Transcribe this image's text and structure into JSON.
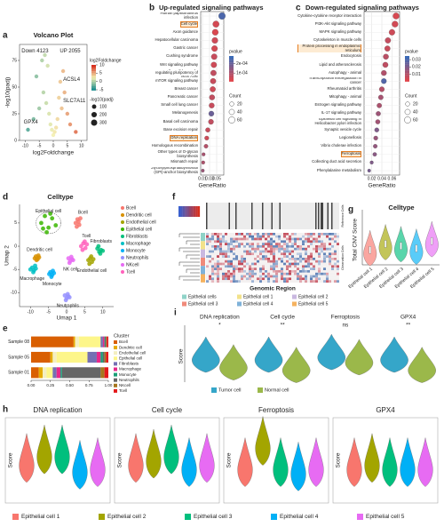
{
  "chart_data": [
    {
      "panel": "a",
      "type": "volcano",
      "title": "Volcano Plot",
      "xlabel": "log2Foldchange",
      "ylabel": "-log10(padj)",
      "x": [
        -9,
        -7,
        -6,
        -5,
        -4,
        -3.5,
        -3,
        -2.5,
        -2,
        -1.5,
        -1,
        -0.5,
        0,
        0.5,
        1,
        1.5,
        2,
        2.5,
        3,
        3.5,
        4,
        5,
        6,
        8
      ],
      "y": [
        10,
        20,
        60,
        30,
        75,
        45,
        80,
        35,
        70,
        25,
        15,
        10,
        5,
        8,
        12,
        20,
        40,
        55,
        30,
        65,
        45,
        25,
        15,
        8
      ],
      "xlim": [
        -12,
        12
      ],
      "ylim": [
        0,
        90
      ],
      "xticks": [
        -10,
        -5,
        0,
        5,
        10
      ],
      "yticks": [
        0,
        25,
        50,
        75
      ],
      "colors": [
        "#1f8f8f",
        "#f3efb0",
        "#d7301f"
      ],
      "annotations": [
        "Down 4123",
        "UP 2055",
        "ACSL4",
        "SLC7A11",
        "GPX4"
      ],
      "color_legend": {
        "title": "log2Foldchange",
        "ticks": [
          10,
          5,
          0,
          -5
        ]
      },
      "size_legend": {
        "title": "-log10(padj)",
        "ticks": [
          100,
          200,
          300
        ]
      }
    },
    {
      "panel": "b",
      "type": "dot",
      "title": "Up-regulated signaling pathways",
      "xlabel": "GeneRatio",
      "categories": [
        "Human papillomavirus infection",
        "Cell cycle",
        "Axon guidance",
        "Hepatocellular carcinoma",
        "Gastric cancer",
        "Cushing syndrome",
        "Wnt signaling pathway",
        "Signaling pathways regulating pluripotency of stem cells",
        "mTOR signaling pathway",
        "Breast cancer",
        "Pancreatic cancer",
        "Small cell lung cancer",
        "Melanogenesis",
        "Basal cell carcinoma",
        "Base excision repair",
        "DNA replication",
        "Homologous recombination",
        "Other types of O-glycan biosynthesis",
        "Mismatch repair",
        "Glycosylphosphatidylinositol (GPI)-anchor biosynthesis"
      ],
      "values": [
        0.065,
        0.048,
        0.046,
        0.045,
        0.044,
        0.043,
        0.042,
        0.041,
        0.04,
        0.039,
        0.037,
        0.036,
        0.035,
        0.034,
        0.025,
        0.022,
        0.02,
        0.013,
        0.012,
        0.011
      ],
      "counts": [
        70,
        60,
        55,
        52,
        50,
        48,
        46,
        45,
        44,
        42,
        40,
        38,
        36,
        35,
        25,
        20,
        18,
        10,
        10,
        8
      ],
      "pvalue": [
        0.00025,
        3e-05,
        2e-05,
        4e-05,
        3e-05,
        5e-05,
        4e-05,
        6e-05,
        5e-05,
        4e-05,
        6e-05,
        5e-05,
        0.0002,
        6e-05,
        5e-05,
        4e-05,
        8e-05,
        0.0001,
        9e-05,
        0.00012
      ],
      "highlight": [
        1,
        15
      ],
      "xlim": [
        0.005,
        0.07
      ],
      "xticks": [
        0.01,
        0.03,
        0.05
      ],
      "colors": [
        "#e0474c",
        "#3a6bb8"
      ],
      "pvalue_legend": {
        "title": "pvalue",
        "lim": [
          1e-05,
          0.00028
        ],
        "ticks": [
          {
            "value": 0.0001,
            "label": "1e-04"
          },
          {
            "value": 0.0002,
            "label": "2e-04"
          }
        ]
      },
      "count_legend": {
        "title": "Count",
        "ticks": [
          20,
          40,
          60
        ]
      }
    },
    {
      "panel": "c",
      "type": "dot",
      "title": "Down-regulated signaling pathways",
      "xlabel": "GeneRatio",
      "categories": [
        "Cytokine-cytokine receptor interaction",
        "PI3K-Akt signaling pathway",
        "MAPK signaling pathway",
        "Cytoskeleton in muscle cells",
        "Protein processing in endoplasmic reticulum",
        "Endocytosis",
        "Lipid and atherosclerosis",
        "Autophagy - animal",
        "Transcriptional misregulation in cancer",
        "Rheumatoid arthritis",
        "Mitophagy - animal",
        "Estrogen signaling pathway",
        "IL-17 signaling pathway",
        "Epithelial cell signaling in Helicobacter pylori infection",
        "Synaptic vesicle cycle",
        "Legionellosis",
        "Vibrio cholerae infection",
        "Ferroptosis",
        "Collecting duct acid secretion",
        "Phenylalanine metabolism"
      ],
      "values": [
        0.068,
        0.066,
        0.06,
        0.052,
        0.051,
        0.048,
        0.047,
        0.044,
        0.044,
        0.04,
        0.038,
        0.035,
        0.033,
        0.032,
        0.03,
        0.028,
        0.027,
        0.026,
        0.02,
        0.015
      ],
      "counts": [
        60,
        55,
        50,
        45,
        42,
        40,
        40,
        38,
        36,
        34,
        30,
        28,
        26,
        25,
        22,
        20,
        18,
        16,
        10,
        8
      ],
      "pvalue": [
        0.002,
        0.003,
        0.004,
        0.006,
        0.005,
        0.008,
        0.007,
        0.01,
        0.03,
        0.009,
        0.012,
        0.011,
        0.014,
        0.013,
        0.02,
        0.015,
        0.016,
        0.018,
        0.02,
        0.022
      ],
      "highlight": [
        4,
        17
      ],
      "xlim": [
        0.005,
        0.075
      ],
      "xticks": [
        0.02,
        0.04,
        0.06
      ],
      "colors": [
        "#e0474c",
        "#3a6bb8"
      ],
      "pvalue_legend": {
        "title": "pvalue",
        "lim": [
          0,
          0.035
        ],
        "ticks": [
          0.01,
          0.02,
          0.03
        ]
      },
      "count_legend": {
        "title": "Count",
        "ticks": [
          20,
          40,
          60
        ]
      }
    },
    {
      "panel": "d",
      "type": "scatter",
      "title": "Celltype",
      "xlabel": "Umap 1",
      "ylabel": "Umap 2",
      "xlim": [
        -13,
        13
      ],
      "ylim": [
        -13,
        9
      ],
      "xticks": [
        -10,
        -5,
        0,
        5,
        10
      ],
      "yticks": [
        -10,
        -5,
        0,
        5
      ],
      "series": [
        {
          "name": "Bcell",
          "color": "#F8766D",
          "x": [
            2.5,
            3,
            3.5,
            2.8,
            3.3,
            3.8
          ],
          "y": [
            5,
            5.8,
            4.6,
            4.2,
            5.3,
            6
          ]
        },
        {
          "name": "Dendritic cell",
          "color": "#D89000",
          "x": [
            -8.5,
            -8,
            -7.6,
            -8.3,
            -7.8,
            -8.8
          ],
          "y": [
            -2.2,
            -2.8,
            -2.4,
            -3,
            -2,
            -2.6
          ]
        },
        {
          "name": "Endothelial cell",
          "color": "#A3A500",
          "x": [
            6,
            6.5,
            7,
            6.3,
            7.4,
            6.8
          ],
          "y": [
            -3,
            -2.6,
            -3.4,
            -3.8,
            -2.8,
            -2.2
          ]
        },
        {
          "name": "Epithelial cell",
          "color": "#39B600",
          "x": [
            -7,
            -6,
            -5,
            -4,
            -3,
            -5.5,
            -4.5,
            -6.5
          ],
          "y": [
            5,
            6.5,
            4,
            6,
            4.5,
            3,
            7,
            3.8
          ]
        },
        {
          "name": "Fibroblasts",
          "color": "#00BF7D",
          "x": [
            8.5,
            9,
            9.5,
            8.8,
            9.3,
            10
          ],
          "y": [
            -0.5,
            -1.2,
            -0.8,
            0,
            -1.6,
            -1
          ]
        },
        {
          "name": "Macrophage",
          "color": "#00BFC4",
          "x": [
            -9.5,
            -9,
            -8.5,
            -9.2,
            -8.7,
            -10
          ],
          "y": [
            -4.6,
            -5.2,
            -4.8,
            -5.6,
            -4.2,
            -5
          ]
        },
        {
          "name": "Monocyte",
          "color": "#00B0F6",
          "x": [
            -4.5,
            -4,
            -3.5,
            -4.2,
            -3.8,
            -4.8
          ],
          "y": [
            -5.6,
            -6.2,
            -5.8,
            -6.6,
            -5.3,
            -6
          ]
        },
        {
          "name": "Neutrophils",
          "color": "#9590FF",
          "x": [
            -0.5,
            0,
            0.5,
            -0.2,
            0.3,
            0.8
          ],
          "y": [
            -10.6,
            -11.2,
            -10.8,
            -11.6,
            -10.3,
            -11
          ]
        },
        {
          "name": "NKcell",
          "color": "#E76BF3",
          "x": [
            0.5,
            1,
            1.5,
            0.8,
            1.3,
            1.8
          ],
          "y": [
            -2.6,
            -3.2,
            -2.8,
            -3.6,
            -2.3,
            -3
          ]
        },
        {
          "name": "Tcell",
          "color": "#FF62BC",
          "x": [
            4,
            4.6,
            5.2,
            5.6,
            4.4,
            5
          ],
          "y": [
            0,
            0.6,
            -0.4,
            0.4,
            -0.8,
            1
          ]
        }
      ],
      "cluster_labels": [
        "Epithelial cell",
        "Bcell",
        "Tcell",
        "Fibroblasts",
        "Dendritic cell",
        "Endothelial cell",
        "Macrophage",
        "NK cell",
        "Monocyte",
        "Neutrophils"
      ]
    },
    {
      "panel": "f",
      "type": "heatmap",
      "xlabel": "Genomic Region",
      "row_groups": [
        "Reference Cells",
        "Observation Cells"
      ],
      "legend": [
        {
          "name": "Epithelial cells",
          "color": "#8fd3c8"
        },
        {
          "name": "Epithelial cell 1",
          "color": "#f2e28a"
        },
        {
          "name": "Epithelial cell 2",
          "color": "#c9b8e0"
        },
        {
          "name": "Epithelial cell 3",
          "color": "#f08a7a"
        },
        {
          "name": "Epithelial cell 4",
          "color": "#7fb2d9"
        },
        {
          "name": "Epithelial cell 5",
          "color": "#f5b25f"
        }
      ]
    },
    {
      "panel": "g",
      "type": "violin",
      "title": "Celltype",
      "ylabel": "Total CNV Score",
      "categories": [
        "Epithelial cell 1",
        "Epithelial cell 2",
        "Epithelial cell 3",
        "Epithelial cell 4",
        "Epithelial cell 5"
      ],
      "values": [
        0.3,
        0.42,
        0.38,
        0.33,
        0.48
      ],
      "colors": [
        "#f8766d",
        "#a3a500",
        "#00bf7d",
        "#00b0f6",
        "#e76bf3"
      ],
      "ylim": [
        0,
        1
      ]
    },
    {
      "panel": "e",
      "type": "stacked_bar",
      "legend_title": "Cluster",
      "categories": [
        "Sample 08",
        "Sample 05",
        "Sample 01"
      ],
      "xlim": [
        0,
        1
      ],
      "xticks": [
        {
          "value": 0,
          "label": "0.00"
        },
        0.25,
        {
          "value": 0.5,
          "label": "0.50"
        },
        0.75,
        {
          "value": 1,
          "label": "1.00"
        }
      ],
      "series": [
        {
          "name": "Bcell",
          "color": "#d95f02",
          "values": [
            0.55,
            0.25,
            0.1
          ]
        },
        {
          "name": "Dendritic cell",
          "color": "#e6ab02",
          "values": [
            0.02,
            0.03,
            0.05
          ]
        },
        {
          "name": "Endothelial cell",
          "color": "#f4efc0",
          "values": [
            0.05,
            0.05,
            0.05
          ]
        },
        {
          "name": "Epithelial cell",
          "color": "#fdf68a",
          "values": [
            0.28,
            0.4,
            0.08
          ]
        },
        {
          "name": "Fibroblasts",
          "color": "#7570b3",
          "values": [
            0.03,
            0.12,
            0.05
          ]
        },
        {
          "name": "Macrophage",
          "color": "#e7298a",
          "values": [
            0.02,
            0.05,
            0.05
          ]
        },
        {
          "name": "Monocyte",
          "color": "#1b9e77",
          "values": [
            0.01,
            0.03,
            0.02
          ]
        },
        {
          "name": "Neutrophils",
          "color": "#666666",
          "values": [
            0.01,
            0.02,
            0.5
          ]
        },
        {
          "name": "NKcell",
          "color": "#a6761d",
          "values": [
            0.01,
            0.02,
            0.05
          ]
        },
        {
          "name": "Tcell",
          "color": "#e41a1c",
          "values": [
            0.02,
            0.03,
            0.05
          ]
        }
      ]
    },
    {
      "panel": "i",
      "type": "grouped_violin",
      "ylabel": "Score",
      "ylim": [
        0,
        1
      ],
      "categories": [
        "DNA replication",
        "Cell cycle",
        "Ferroptosis",
        "GPX4"
      ],
      "significance": [
        "*",
        "**",
        "ns",
        "**"
      ],
      "series": [
        {
          "name": "Tumor cell",
          "color": "#35a6c9",
          "values": [
            0.5,
            0.5,
            0.55,
            0.5
          ]
        },
        {
          "name": "Normal cell",
          "color": "#9bb84a",
          "values": [
            0.35,
            0.3,
            0.45,
            0.3
          ]
        }
      ]
    },
    {
      "panel": "h",
      "type": "violin_panels",
      "ylabel": "Score",
      "ylim": [
        0,
        1
      ],
      "legend": [
        "Epithelial cell 1",
        "Epithelial cell 2",
        "Epithelial cell 3",
        "Epithelial cell 4",
        "Epithelial cell 5"
      ],
      "colors": [
        "#f8766d",
        "#a3a500",
        "#00bf7d",
        "#00b0f6",
        "#e76bf3"
      ],
      "panels": [
        {
          "title": "DNA replication",
          "values": [
            0.5,
            0.6,
            0.6,
            0.42,
            0.45
          ]
        },
        {
          "title": "Cell cycle",
          "values": [
            0.5,
            0.55,
            0.6,
            0.45,
            0.5
          ]
        },
        {
          "title": "Ferroptosis",
          "values": [
            0.45,
            0.7,
            0.45,
            0.4,
            0.45
          ]
        },
        {
          "title": "GPX4",
          "values": [
            0.45,
            0.5,
            0.45,
            0.45,
            0.45
          ]
        }
      ]
    }
  ]
}
